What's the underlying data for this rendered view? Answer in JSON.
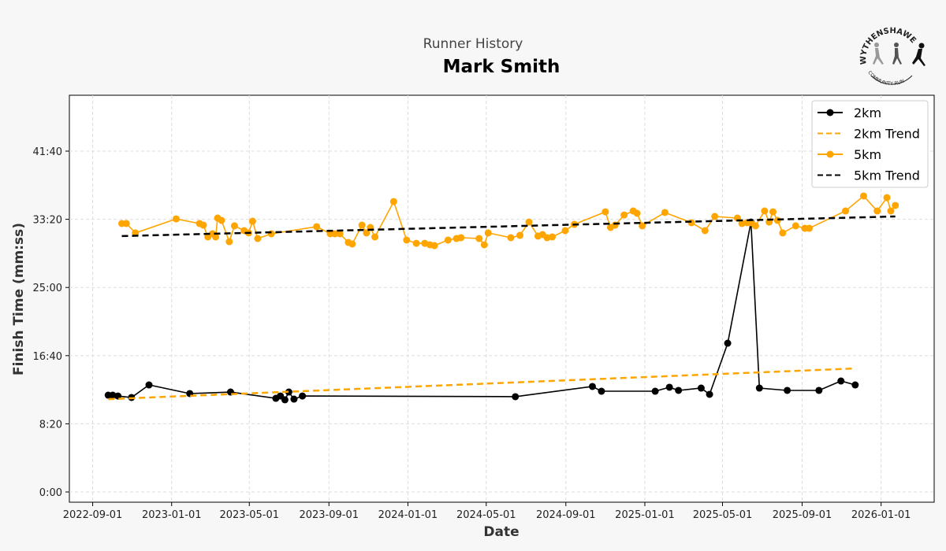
{
  "chart_data": {
    "type": "line",
    "subtitle": "Runner History",
    "title": "Mark Smith",
    "xlabel": "Date",
    "ylabel": "Finish Time (mm:ss)",
    "xlim": [
      "2022-07-27",
      "2026-03-24"
    ],
    "ylim_seconds": [
      -75,
      2910
    ],
    "x_ticks": [
      "2022-09-01",
      "2023-01-01",
      "2023-05-01",
      "2023-09-01",
      "2024-01-01",
      "2024-05-01",
      "2024-09-01",
      "2025-01-01",
      "2025-05-01",
      "2025-09-01",
      "2026-01-01"
    ],
    "y_ticks": [
      "0:00",
      "8:20",
      "16:40",
      "25:00",
      "33:20",
      "41:40"
    ],
    "y_tick_seconds": [
      0,
      500,
      1000,
      1500,
      2000,
      2500
    ],
    "grid": true,
    "legend_position": "top-right",
    "series": [
      {
        "name": "2km",
        "style": "solid-marker",
        "color": "#000000",
        "points": [
          [
            "2022-09-25",
            "11:50"
          ],
          [
            "2022-10-02",
            "11:50"
          ],
          [
            "2022-10-10",
            "11:44"
          ],
          [
            "2022-10-31",
            "11:33"
          ],
          [
            "2022-11-27",
            "13:05"
          ],
          [
            "2023-01-29",
            "12:02"
          ],
          [
            "2023-04-02",
            "12:13"
          ],
          [
            "2023-06-11",
            "11:27"
          ],
          [
            "2023-06-18",
            "11:44"
          ],
          [
            "2023-06-25",
            "11:16"
          ],
          [
            "2023-07-01",
            "12:13"
          ],
          [
            "2023-07-09",
            "11:21"
          ],
          [
            "2023-07-22",
            "11:44"
          ],
          [
            "2024-06-15",
            "11:39"
          ],
          [
            "2024-10-12",
            "12:54"
          ],
          [
            "2024-10-26",
            "12:19"
          ],
          [
            "2025-01-17",
            "12:19"
          ],
          [
            "2025-02-08",
            "12:48"
          ],
          [
            "2025-02-22",
            "12:25"
          ],
          [
            "2025-03-29",
            "12:42"
          ],
          [
            "2025-04-11",
            "11:56"
          ],
          [
            "2025-05-09",
            "18:11"
          ],
          [
            "2025-06-14",
            "33:00"
          ],
          [
            "2025-06-27",
            "12:42"
          ],
          [
            "2025-08-09",
            "12:25"
          ],
          [
            "2025-09-27",
            "12:25"
          ],
          [
            "2025-10-31",
            "13:34"
          ],
          [
            "2025-11-22",
            "13:05"
          ]
        ]
      },
      {
        "name": "2km Trend",
        "style": "dashed",
        "color": "#ffa500",
        "points": [
          [
            "2022-09-25",
            "11:21"
          ],
          [
            "2025-11-21",
            "15:06"
          ]
        ]
      },
      {
        "name": "5km",
        "style": "solid-marker",
        "color": "#ffa500",
        "points": [
          [
            "2022-10-16",
            "32:49"
          ],
          [
            "2022-10-23",
            "32:49"
          ],
          [
            "2022-11-06",
            "31:40"
          ],
          [
            "2023-01-08",
            "33:23"
          ],
          [
            "2023-02-13",
            "32:49"
          ],
          [
            "2023-02-19",
            "32:37"
          ],
          [
            "2023-02-26",
            "31:11"
          ],
          [
            "2023-03-05",
            "31:34"
          ],
          [
            "2023-03-10",
            "31:11"
          ],
          [
            "2023-03-13",
            "33:29"
          ],
          [
            "2023-03-19",
            "33:12"
          ],
          [
            "2023-03-31",
            "30:36"
          ],
          [
            "2023-04-08",
            "32:32"
          ],
          [
            "2023-04-23",
            "31:57"
          ],
          [
            "2023-04-30",
            "31:40"
          ],
          [
            "2023-05-06",
            "33:06"
          ],
          [
            "2023-05-14",
            "30:59"
          ],
          [
            "2023-06-04",
            "31:34"
          ],
          [
            "2023-08-13",
            "32:26"
          ],
          [
            "2023-09-03",
            "31:34"
          ],
          [
            "2023-09-10",
            "31:34"
          ],
          [
            "2023-09-18",
            "31:34"
          ],
          [
            "2023-10-01",
            "30:30"
          ],
          [
            "2023-10-07",
            "30:19"
          ],
          [
            "2023-10-22",
            "32:37"
          ],
          [
            "2023-10-29",
            "31:40"
          ],
          [
            "2023-11-04",
            "32:20"
          ],
          [
            "2023-11-11",
            "31:11"
          ],
          [
            "2023-12-10",
            "35:30"
          ],
          [
            "2023-12-30",
            "30:48"
          ],
          [
            "2024-01-14",
            "30:24"
          ],
          [
            "2024-01-27",
            "30:24"
          ],
          [
            "2024-02-04",
            "30:13"
          ],
          [
            "2024-02-11",
            "30:07"
          ],
          [
            "2024-03-03",
            "30:48"
          ],
          [
            "2024-03-16",
            "30:59"
          ],
          [
            "2024-03-23",
            "31:05"
          ],
          [
            "2024-04-20",
            "30:59"
          ],
          [
            "2024-04-28",
            "30:13"
          ],
          [
            "2024-05-04",
            "31:40"
          ],
          [
            "2024-06-08",
            "31:05"
          ],
          [
            "2024-06-22",
            "31:22"
          ],
          [
            "2024-07-06",
            "33:00"
          ],
          [
            "2024-07-20",
            "31:17"
          ],
          [
            "2024-07-27",
            "31:28"
          ],
          [
            "2024-08-03",
            "31:05"
          ],
          [
            "2024-08-11",
            "31:11"
          ],
          [
            "2024-08-31",
            "31:57"
          ],
          [
            "2024-09-14",
            "32:43"
          ],
          [
            "2024-11-01",
            "34:15"
          ],
          [
            "2024-11-09",
            "32:20"
          ],
          [
            "2024-11-16",
            "32:37"
          ],
          [
            "2024-11-30",
            "33:52"
          ],
          [
            "2024-12-14",
            "34:21"
          ],
          [
            "2024-12-20",
            "34:04"
          ],
          [
            "2024-12-28",
            "32:32"
          ],
          [
            "2025-02-01",
            "34:10"
          ],
          [
            "2025-03-14",
            "32:55"
          ],
          [
            "2025-04-04",
            "31:57"
          ],
          [
            "2025-04-19",
            "33:41"
          ],
          [
            "2025-05-24",
            "33:29"
          ],
          [
            "2025-05-31",
            "32:49"
          ],
          [
            "2025-06-08",
            "32:55"
          ],
          [
            "2025-06-14",
            "32:55"
          ],
          [
            "2025-06-21",
            "32:32"
          ],
          [
            "2025-07-05",
            "34:21"
          ],
          [
            "2025-07-12",
            "33:00"
          ],
          [
            "2025-07-18",
            "34:15"
          ],
          [
            "2025-07-25",
            "33:12"
          ],
          [
            "2025-08-02",
            "31:40"
          ],
          [
            "2025-08-22",
            "32:32"
          ],
          [
            "2025-09-05",
            "32:14"
          ],
          [
            "2025-09-12",
            "32:14"
          ],
          [
            "2025-11-07",
            "34:21"
          ],
          [
            "2025-12-05",
            "36:11"
          ],
          [
            "2025-12-26",
            "34:21"
          ],
          [
            "2026-01-10",
            "35:59"
          ],
          [
            "2026-01-16",
            "34:21"
          ],
          [
            "2026-01-23",
            "35:02"
          ]
        ]
      },
      {
        "name": "5km Trend",
        "style": "dashed",
        "color": "#000000",
        "points": [
          [
            "2022-10-16",
            "31:17"
          ],
          [
            "2026-01-23",
            "33:41"
          ]
        ]
      }
    ]
  },
  "logo": {
    "top_text": "WYTHENSHAWE",
    "bottom_text": "COMMUNITY RUN"
  }
}
